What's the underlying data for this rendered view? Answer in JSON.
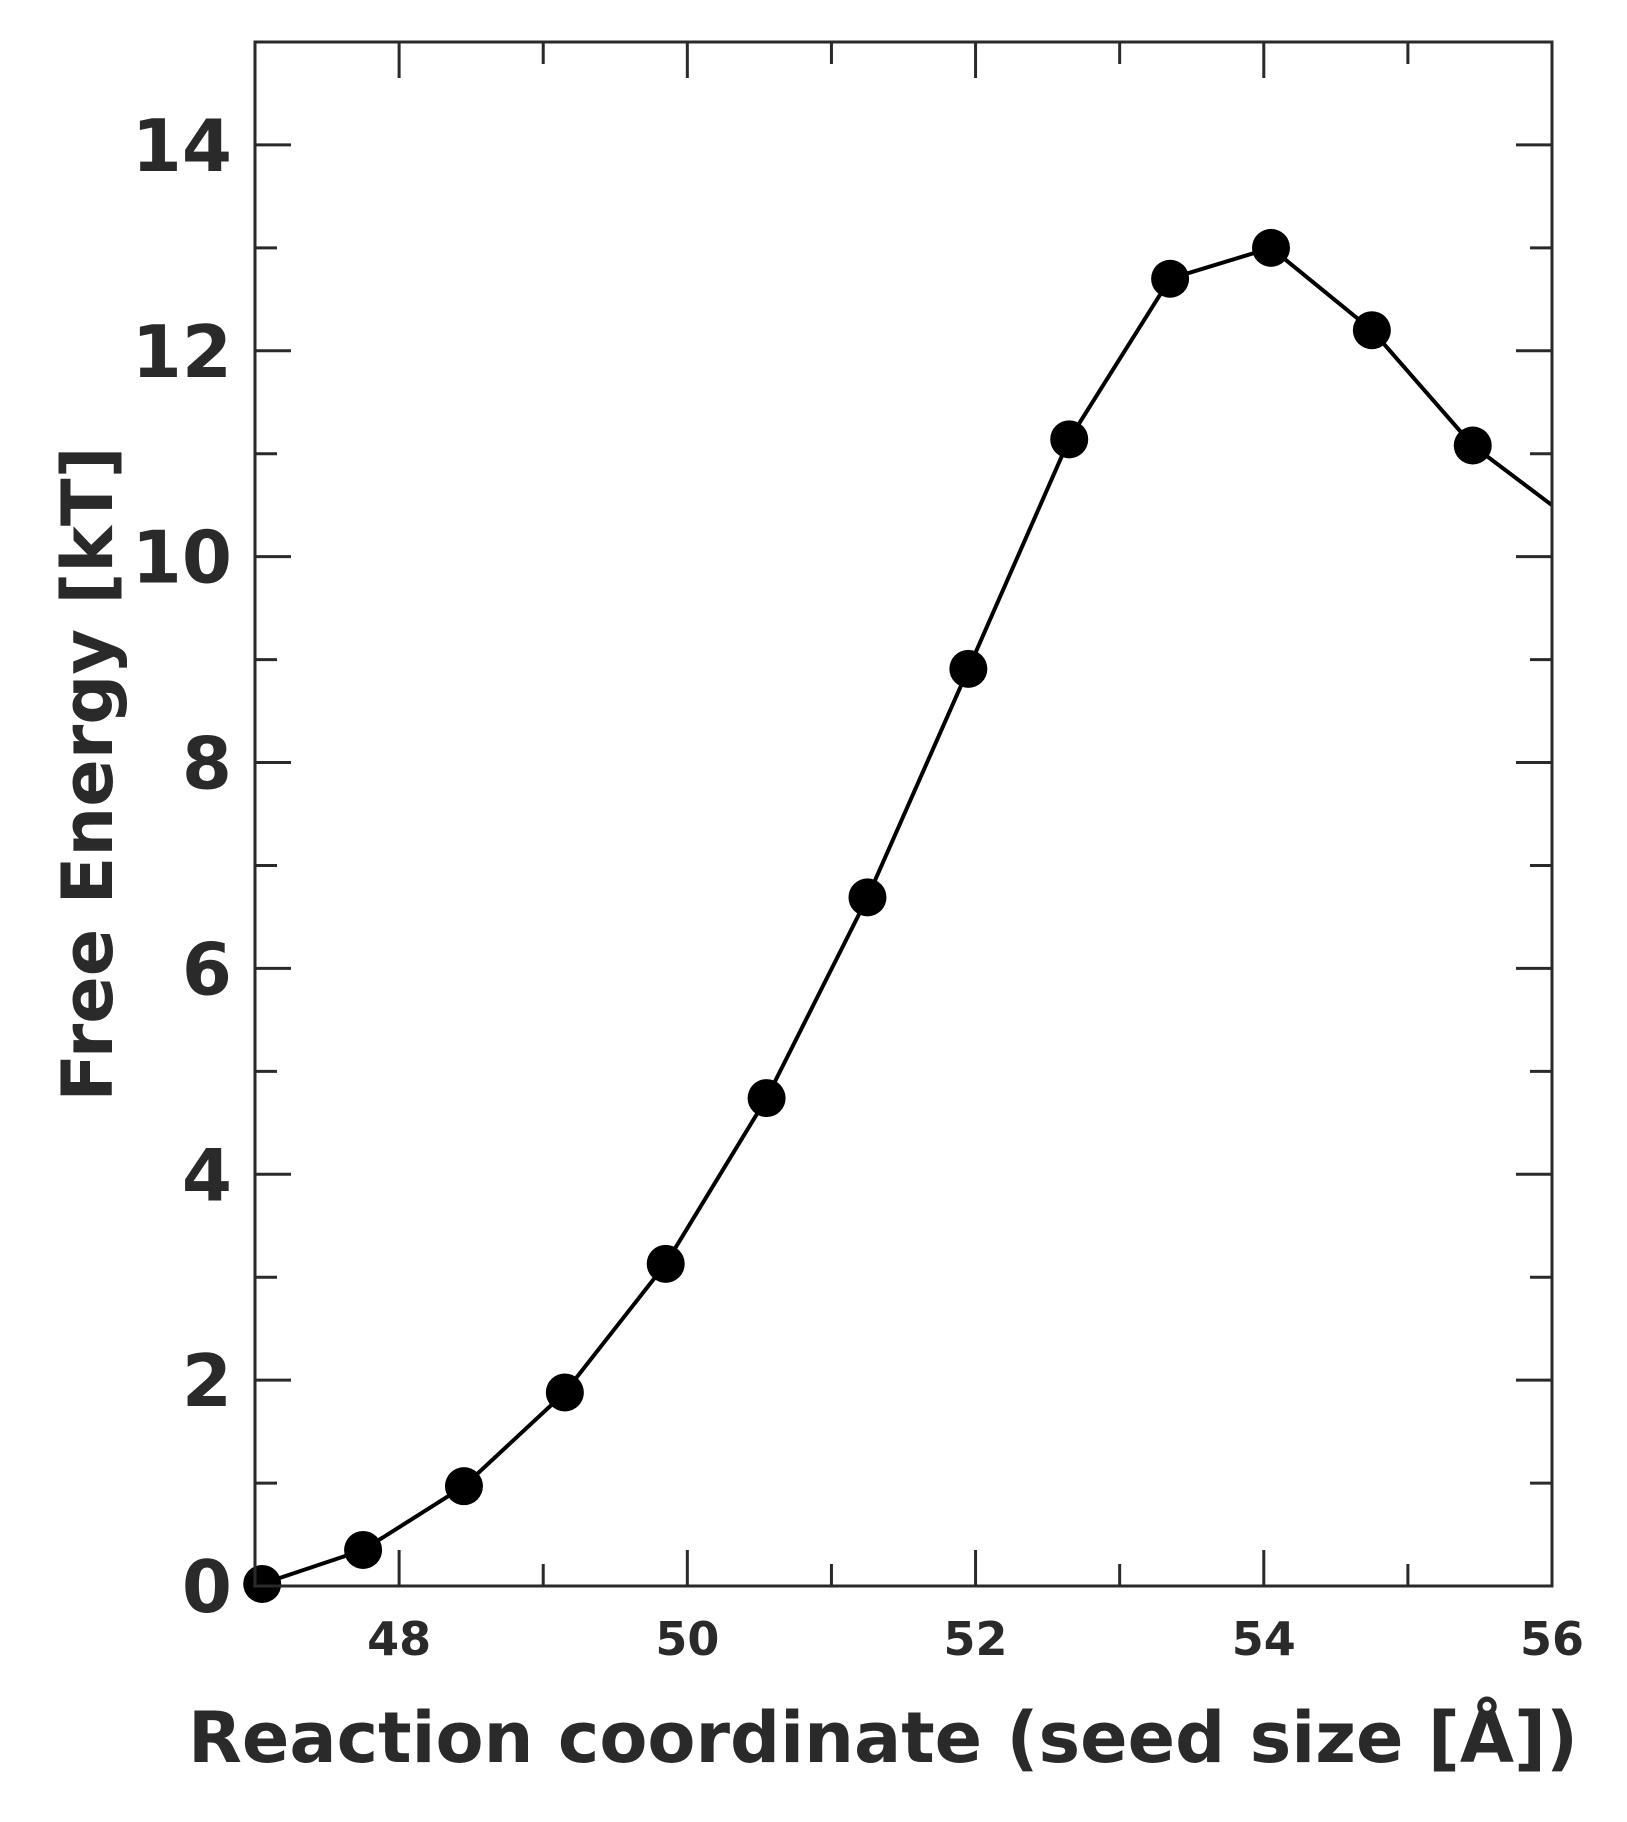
{
  "chart_data": {
    "type": "line",
    "title": "",
    "xlabel": "Reaction coordinate (seed size [Å])",
    "ylabel": "Free Energy [kT]",
    "xlim": [
      47.0,
      56.0
    ],
    "ylim": [
      0,
      15
    ],
    "xticks": [
      48,
      50,
      52,
      54,
      56
    ],
    "xminor": [
      47,
      48,
      49,
      50,
      51,
      52,
      53,
      54,
      55,
      56
    ],
    "yticks": [
      0,
      2,
      4,
      6,
      8,
      10,
      12,
      14
    ],
    "yminor": [
      0,
      1,
      2,
      3,
      4,
      5,
      6,
      7,
      8,
      9,
      10,
      11,
      12,
      13,
      14,
      15
    ],
    "grid": false,
    "series": [
      {
        "color": "#000000",
        "marker": "circle",
        "x": [
          47.05,
          47.75,
          48.45,
          49.15,
          49.85,
          50.55,
          51.25,
          51.95,
          52.65,
          53.35,
          54.05,
          54.75,
          55.45,
          56.0
        ],
        "y": [
          0.02,
          0.35,
          0.97,
          1.88,
          3.13,
          4.74,
          6.69,
          8.91,
          11.14,
          12.7,
          13.0,
          12.2,
          11.08,
          10.5
        ],
        "markers": [
          true,
          true,
          true,
          true,
          true,
          true,
          true,
          true,
          true,
          true,
          true,
          true,
          true,
          false
        ]
      }
    ]
  }
}
